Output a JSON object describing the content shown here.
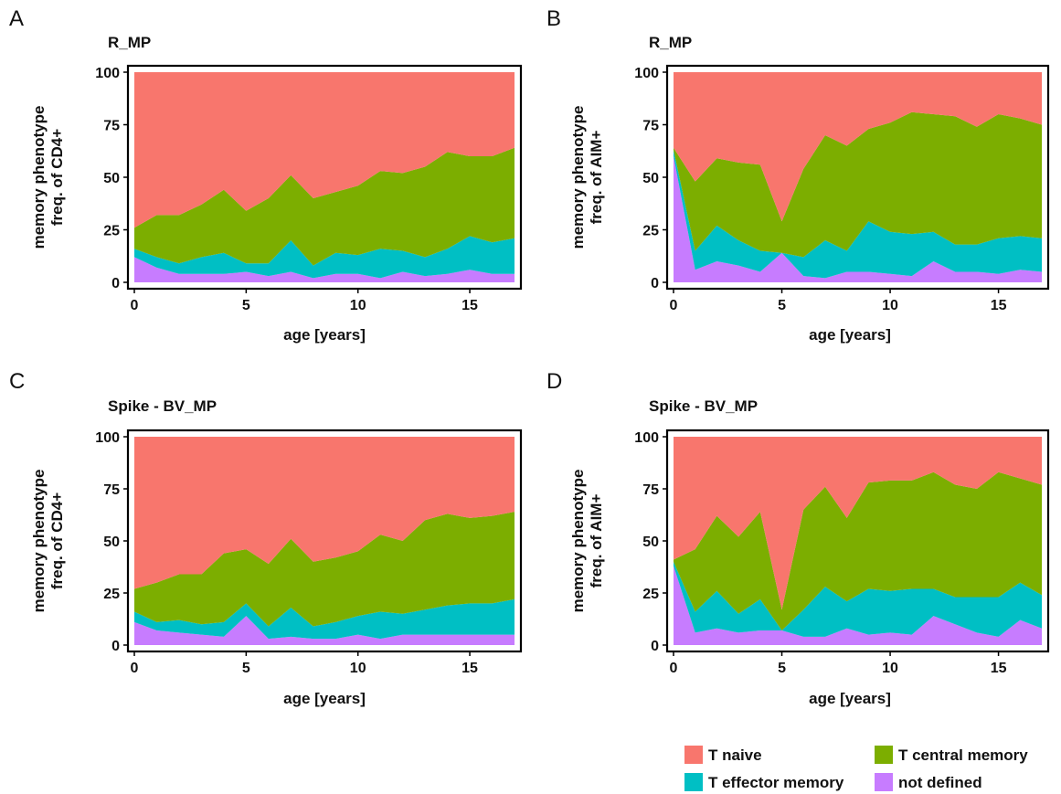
{
  "legend": [
    {
      "key": "naive",
      "label": "T naive",
      "color": "#F8766D"
    },
    {
      "key": "central",
      "label": "T central memory",
      "color": "#7CAE00"
    },
    {
      "key": "effector",
      "label": "T effector memory",
      "color": "#00BFC4"
    },
    {
      "key": "undefined",
      "label": "not defined",
      "color": "#C77CFF"
    }
  ],
  "chart_data": [
    {
      "panel": "A",
      "type": "area",
      "stacked": true,
      "title": "R_MP",
      "xlabel": "age [years]",
      "ylabel_line1": "memory phenotype",
      "ylabel_line2": "freq. of CD4+",
      "xlim": [
        0,
        17
      ],
      "ylim": [
        0,
        100
      ],
      "xticks": [
        0,
        5,
        10,
        15
      ],
      "yticks": [
        0,
        25,
        50,
        75,
        100
      ],
      "x": [
        0,
        1,
        2,
        3,
        4,
        5,
        6,
        7,
        8,
        9,
        10,
        11,
        12,
        13,
        14,
        15,
        16,
        17
      ],
      "series": [
        {
          "name": "not defined",
          "values": [
            12,
            7,
            4,
            4,
            4,
            5,
            3,
            5,
            2,
            4,
            4,
            2,
            5,
            3,
            4,
            6,
            4,
            4
          ]
        },
        {
          "name": "T effector memory",
          "values": [
            4,
            5,
            5,
            8,
            10,
            4,
            6,
            15,
            6,
            10,
            9,
            14,
            10,
            9,
            12,
            16,
            15,
            17
          ]
        },
        {
          "name": "T central memory",
          "values": [
            10,
            20,
            23,
            25,
            30,
            25,
            31,
            31,
            32,
            29,
            33,
            37,
            37,
            43,
            46,
            38,
            41,
            43
          ]
        },
        {
          "name": "T naive",
          "values": [
            74,
            68,
            68,
            63,
            56,
            66,
            60,
            49,
            60,
            57,
            54,
            47,
            48,
            45,
            38,
            40,
            40,
            36
          ]
        }
      ]
    },
    {
      "panel": "B",
      "type": "area",
      "stacked": true,
      "title": "R_MP",
      "xlabel": "age [years]",
      "ylabel_line1": "memory phenotype",
      "ylabel_line2": "freq. of AIM+",
      "xlim": [
        0,
        17
      ],
      "ylim": [
        0,
        100
      ],
      "xticks": [
        0,
        5,
        10,
        15
      ],
      "yticks": [
        0,
        25,
        50,
        75,
        100
      ],
      "x": [
        0,
        1,
        2,
        3,
        4,
        5,
        6,
        7,
        8,
        9,
        10,
        11,
        12,
        13,
        14,
        15,
        16,
        17
      ],
      "series": [
        {
          "name": "not defined",
          "values": [
            60,
            6,
            10,
            8,
            5,
            14,
            3,
            2,
            5,
            5,
            4,
            3,
            10,
            5,
            5,
            4,
            6,
            5
          ]
        },
        {
          "name": "T effector memory",
          "values": [
            3,
            9,
            17,
            12,
            10,
            0,
            9,
            18,
            10,
            24,
            20,
            20,
            14,
            13,
            13,
            17,
            16,
            16
          ]
        },
        {
          "name": "T central memory",
          "values": [
            1,
            33,
            32,
            37,
            41,
            15,
            42,
            50,
            50,
            44,
            52,
            58,
            56,
            61,
            56,
            59,
            56,
            54
          ]
        },
        {
          "name": "T naive",
          "values": [
            36,
            52,
            41,
            43,
            44,
            71,
            46,
            30,
            35,
            27,
            24,
            19,
            20,
            21,
            26,
            20,
            22,
            25
          ]
        }
      ]
    },
    {
      "panel": "C",
      "type": "area",
      "stacked": true,
      "title": "Spike - BV_MP",
      "xlabel": "age [years]",
      "ylabel_line1": "memory phenotype",
      "ylabel_line2": "freq. of CD4+",
      "xlim": [
        0,
        17
      ],
      "ylim": [
        0,
        100
      ],
      "xticks": [
        0,
        5,
        10,
        15
      ],
      "yticks": [
        0,
        25,
        50,
        75,
        100
      ],
      "x": [
        0,
        1,
        2,
        3,
        4,
        5,
        6,
        7,
        8,
        9,
        10,
        11,
        12,
        13,
        14,
        15,
        16,
        17
      ],
      "series": [
        {
          "name": "not defined",
          "values": [
            11,
            7,
            6,
            5,
            4,
            14,
            3,
            4,
            3,
            3,
            5,
            3,
            5,
            5,
            5,
            5,
            5,
            5
          ]
        },
        {
          "name": "T effector memory",
          "values": [
            5,
            4,
            6,
            5,
            7,
            6,
            6,
            14,
            6,
            8,
            9,
            13,
            10,
            12,
            14,
            15,
            15,
            17
          ]
        },
        {
          "name": "T central memory",
          "values": [
            11,
            19,
            22,
            24,
            33,
            26,
            30,
            33,
            31,
            31,
            31,
            37,
            35,
            43,
            44,
            41,
            42,
            42
          ]
        },
        {
          "name": "T naive",
          "values": [
            73,
            70,
            66,
            66,
            56,
            54,
            61,
            49,
            60,
            58,
            55,
            47,
            50,
            40,
            37,
            39,
            38,
            36
          ]
        }
      ]
    },
    {
      "panel": "D",
      "type": "area",
      "stacked": true,
      "title": "Spike - BV_MP",
      "xlabel": "age [years]",
      "ylabel_line1": "memory phenotype",
      "ylabel_line2": "freq. of AIM+",
      "xlim": [
        0,
        17
      ],
      "ylim": [
        0,
        100
      ],
      "xticks": [
        0,
        5,
        10,
        15
      ],
      "yticks": [
        0,
        25,
        50,
        75,
        100
      ],
      "x": [
        0,
        1,
        2,
        3,
        4,
        5,
        6,
        7,
        8,
        9,
        10,
        11,
        12,
        13,
        14,
        15,
        16,
        17
      ],
      "series": [
        {
          "name": "not defined",
          "values": [
            38,
            6,
            8,
            6,
            7,
            7,
            4,
            4,
            8,
            5,
            6,
            5,
            14,
            10,
            6,
            4,
            12,
            8
          ]
        },
        {
          "name": "T effector memory",
          "values": [
            2,
            10,
            18,
            9,
            15,
            0,
            13,
            24,
            13,
            22,
            20,
            22,
            13,
            13,
            17,
            19,
            18,
            16
          ]
        },
        {
          "name": "T central memory",
          "values": [
            1,
            30,
            36,
            37,
            42,
            10,
            48,
            48,
            40,
            51,
            53,
            52,
            56,
            54,
            52,
            60,
            50,
            53
          ]
        },
        {
          "name": "T naive",
          "values": [
            59,
            54,
            38,
            48,
            36,
            83,
            35,
            24,
            39,
            22,
            21,
            21,
            17,
            23,
            25,
            17,
            20,
            23
          ]
        }
      ]
    }
  ]
}
